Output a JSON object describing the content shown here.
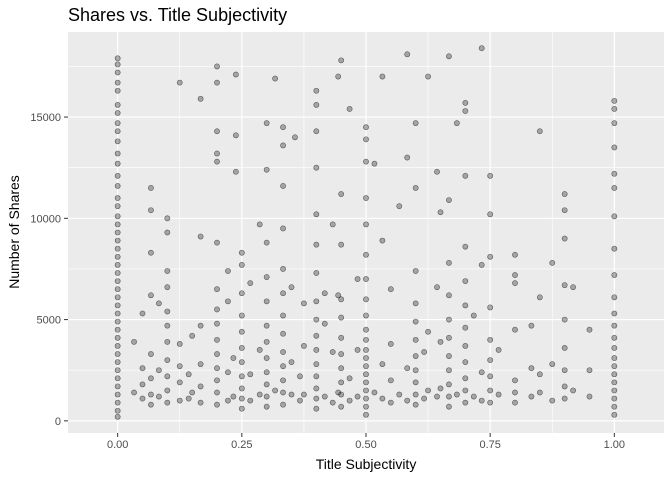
{
  "chart_data": {
    "type": "scatter",
    "title": "Shares vs. Title Subjectivity",
    "xlabel": "Title Subjectivity",
    "ylabel": "Number of Shares",
    "xlim": [
      -0.1,
      1.1
    ],
    "ylim": [
      -600,
      19200
    ],
    "x_ticks": [
      0.0,
      0.25,
      0.5,
      0.75,
      1.0
    ],
    "x_tick_labels": [
      "0.00",
      "0.25",
      "0.50",
      "0.75",
      "1.00"
    ],
    "y_ticks": [
      0,
      5000,
      10000,
      15000
    ],
    "y_tick_labels": [
      "0",
      "5000",
      "10000",
      "15000"
    ],
    "grid": true,
    "legend": "none",
    "point_color": "#000000",
    "point_alpha": 0.3,
    "panel_background": "#ebebeb",
    "grid_color": "#ffffff",
    "points": [
      [
        0.0,
        17900
      ],
      [
        0.0,
        17600
      ],
      [
        0.0,
        17200
      ],
      [
        0.0,
        16700
      ],
      [
        0.0,
        16300
      ],
      [
        0.0,
        15600
      ],
      [
        0.0,
        15200
      ],
      [
        0.0,
        14700
      ],
      [
        0.0,
        14300
      ],
      [
        0.0,
        13800
      ],
      [
        0.0,
        13200
      ],
      [
        0.0,
        12700
      ],
      [
        0.0,
        12100
      ],
      [
        0.0,
        11600
      ],
      [
        0.0,
        11000
      ],
      [
        0.0,
        10600
      ],
      [
        0.0,
        10100
      ],
      [
        0.0,
        9700
      ],
      [
        0.0,
        9300
      ],
      [
        0.0,
        8900
      ],
      [
        0.0,
        8500
      ],
      [
        0.0,
        8100
      ],
      [
        0.0,
        7700
      ],
      [
        0.0,
        7300
      ],
      [
        0.0,
        6900
      ],
      [
        0.0,
        6500
      ],
      [
        0.0,
        6100
      ],
      [
        0.0,
        5700
      ],
      [
        0.0,
        5300
      ],
      [
        0.0,
        4900
      ],
      [
        0.0,
        4500
      ],
      [
        0.0,
        4100
      ],
      [
        0.0,
        3700
      ],
      [
        0.0,
        3300
      ],
      [
        0.0,
        2900
      ],
      [
        0.0,
        2500
      ],
      [
        0.0,
        2100
      ],
      [
        0.0,
        1700
      ],
      [
        0.0,
        1300
      ],
      [
        0.0,
        900
      ],
      [
        0.0,
        500
      ],
      [
        0.0,
        200
      ],
      [
        0.033,
        1400
      ],
      [
        0.033,
        3900
      ],
      [
        0.05,
        1100
      ],
      [
        0.05,
        1800
      ],
      [
        0.05,
        2600
      ],
      [
        0.05,
        5300
      ],
      [
        0.067,
        800
      ],
      [
        0.067,
        1300
      ],
      [
        0.067,
        2100
      ],
      [
        0.067,
        3300
      ],
      [
        0.067,
        6200
      ],
      [
        0.067,
        8300
      ],
      [
        0.067,
        10400
      ],
      [
        0.067,
        11500
      ],
      [
        0.083,
        1200
      ],
      [
        0.083,
        2500
      ],
      [
        0.083,
        5800
      ],
      [
        0.1,
        900
      ],
      [
        0.1,
        1500
      ],
      [
        0.1,
        2200
      ],
      [
        0.1,
        3000
      ],
      [
        0.1,
        3900
      ],
      [
        0.1,
        4700
      ],
      [
        0.1,
        5400
      ],
      [
        0.1,
        6600
      ],
      [
        0.1,
        7400
      ],
      [
        0.1,
        9300
      ],
      [
        0.1,
        10000
      ],
      [
        0.125,
        1000
      ],
      [
        0.125,
        1900
      ],
      [
        0.125,
        2700
      ],
      [
        0.125,
        3800
      ],
      [
        0.125,
        16700
      ],
      [
        0.143,
        1100
      ],
      [
        0.143,
        2300
      ],
      [
        0.15,
        1400
      ],
      [
        0.15,
        4200
      ],
      [
        0.167,
        900
      ],
      [
        0.167,
        1700
      ],
      [
        0.167,
        2800
      ],
      [
        0.167,
        4700
      ],
      [
        0.167,
        9100
      ],
      [
        0.167,
        15900
      ],
      [
        0.2,
        800
      ],
      [
        0.2,
        1400
      ],
      [
        0.2,
        2000
      ],
      [
        0.2,
        2600
      ],
      [
        0.2,
        3300
      ],
      [
        0.2,
        4000
      ],
      [
        0.2,
        4800
      ],
      [
        0.2,
        5500
      ],
      [
        0.2,
        6500
      ],
      [
        0.2,
        8800
      ],
      [
        0.2,
        12800
      ],
      [
        0.2,
        13200
      ],
      [
        0.2,
        14300
      ],
      [
        0.2,
        16700
      ],
      [
        0.2,
        17500
      ],
      [
        0.222,
        1000
      ],
      [
        0.222,
        2400
      ],
      [
        0.222,
        5900
      ],
      [
        0.222,
        7400
      ],
      [
        0.233,
        1200
      ],
      [
        0.233,
        3100
      ],
      [
        0.238,
        12300
      ],
      [
        0.238,
        14100
      ],
      [
        0.238,
        17100
      ],
      [
        0.25,
        600
      ],
      [
        0.25,
        1100
      ],
      [
        0.25,
        1600
      ],
      [
        0.25,
        2200
      ],
      [
        0.25,
        2900
      ],
      [
        0.25,
        3600
      ],
      [
        0.25,
        4400
      ],
      [
        0.25,
        5200
      ],
      [
        0.25,
        6300
      ],
      [
        0.25,
        7700
      ],
      [
        0.25,
        8300
      ],
      [
        0.267,
        1000
      ],
      [
        0.267,
        2300
      ],
      [
        0.267,
        6800
      ],
      [
        0.286,
        1300
      ],
      [
        0.286,
        3500
      ],
      [
        0.286,
        9700
      ],
      [
        0.3,
        700
      ],
      [
        0.3,
        1200
      ],
      [
        0.3,
        1800
      ],
      [
        0.3,
        2400
      ],
      [
        0.3,
        3100
      ],
      [
        0.3,
        3900
      ],
      [
        0.3,
        4700
      ],
      [
        0.3,
        5900
      ],
      [
        0.3,
        7100
      ],
      [
        0.3,
        8800
      ],
      [
        0.3,
        12400
      ],
      [
        0.3,
        14700
      ],
      [
        0.317,
        1500
      ],
      [
        0.317,
        16900
      ],
      [
        0.333,
        800
      ],
      [
        0.333,
        1400
      ],
      [
        0.333,
        2000
      ],
      [
        0.333,
        2700
      ],
      [
        0.333,
        3400
      ],
      [
        0.333,
        4300
      ],
      [
        0.333,
        5200
      ],
      [
        0.333,
        6300
      ],
      [
        0.333,
        7500
      ],
      [
        0.333,
        9500
      ],
      [
        0.333,
        11600
      ],
      [
        0.333,
        13600
      ],
      [
        0.333,
        14500
      ],
      [
        0.35,
        1300
      ],
      [
        0.35,
        2900
      ],
      [
        0.35,
        6600
      ],
      [
        0.357,
        14000
      ],
      [
        0.367,
        1000
      ],
      [
        0.367,
        2200
      ],
      [
        0.375,
        1300
      ],
      [
        0.375,
        3700
      ],
      [
        0.375,
        5800
      ],
      [
        0.4,
        600
      ],
      [
        0.4,
        1100
      ],
      [
        0.4,
        1600
      ],
      [
        0.4,
        2200
      ],
      [
        0.4,
        2800
      ],
      [
        0.4,
        3500
      ],
      [
        0.4,
        4200
      ],
      [
        0.4,
        5000
      ],
      [
        0.4,
        5900
      ],
      [
        0.4,
        7300
      ],
      [
        0.4,
        8700
      ],
      [
        0.4,
        10200
      ],
      [
        0.4,
        12500
      ],
      [
        0.4,
        14300
      ],
      [
        0.4,
        15600
      ],
      [
        0.4,
        16300
      ],
      [
        0.417,
        1200
      ],
      [
        0.417,
        4800
      ],
      [
        0.417,
        6300
      ],
      [
        0.433,
        900
      ],
      [
        0.433,
        3400
      ],
      [
        0.433,
        9700
      ],
      [
        0.444,
        1400
      ],
      [
        0.444,
        6200
      ],
      [
        0.444,
        17000
      ],
      [
        0.45,
        700
      ],
      [
        0.45,
        1300
      ],
      [
        0.45,
        1900
      ],
      [
        0.45,
        2600
      ],
      [
        0.45,
        3300
      ],
      [
        0.45,
        4100
      ],
      [
        0.45,
        5100
      ],
      [
        0.45,
        6000
      ],
      [
        0.45,
        8700
      ],
      [
        0.45,
        11200
      ],
      [
        0.45,
        17800
      ],
      [
        0.467,
        1000
      ],
      [
        0.467,
        2100
      ],
      [
        0.467,
        15400
      ],
      [
        0.483,
        1200
      ],
      [
        0.483,
        3500
      ],
      [
        0.483,
        7000
      ],
      [
        0.5,
        300
      ],
      [
        0.5,
        700
      ],
      [
        0.5,
        1100
      ],
      [
        0.5,
        1500
      ],
      [
        0.5,
        1900
      ],
      [
        0.5,
        2300
      ],
      [
        0.5,
        2700
      ],
      [
        0.5,
        3100
      ],
      [
        0.5,
        3500
      ],
      [
        0.5,
        4000
      ],
      [
        0.5,
        4500
      ],
      [
        0.5,
        5200
      ],
      [
        0.5,
        6000
      ],
      [
        0.5,
        7000
      ],
      [
        0.5,
        8200
      ],
      [
        0.5,
        9700
      ],
      [
        0.5,
        11000
      ],
      [
        0.5,
        12800
      ],
      [
        0.5,
        13900
      ],
      [
        0.5,
        14500
      ],
      [
        0.517,
        1400
      ],
      [
        0.517,
        12700
      ],
      [
        0.533,
        1100
      ],
      [
        0.533,
        2800
      ],
      [
        0.533,
        8900
      ],
      [
        0.533,
        17000
      ],
      [
        0.55,
        900
      ],
      [
        0.55,
        2000
      ],
      [
        0.55,
        3800
      ],
      [
        0.55,
        6500
      ],
      [
        0.567,
        1300
      ],
      [
        0.567,
        10600
      ],
      [
        0.583,
        1000
      ],
      [
        0.583,
        2600
      ],
      [
        0.583,
        13000
      ],
      [
        0.583,
        18100
      ],
      [
        0.6,
        800
      ],
      [
        0.6,
        1300
      ],
      [
        0.6,
        1900
      ],
      [
        0.6,
        2500
      ],
      [
        0.6,
        3200
      ],
      [
        0.6,
        4000
      ],
      [
        0.6,
        4900
      ],
      [
        0.6,
        5800
      ],
      [
        0.6,
        7400
      ],
      [
        0.6,
        11500
      ],
      [
        0.6,
        14700
      ],
      [
        0.617,
        1100
      ],
      [
        0.617,
        3400
      ],
      [
        0.625,
        1500
      ],
      [
        0.625,
        4400
      ],
      [
        0.625,
        17000
      ],
      [
        0.643,
        1200
      ],
      [
        0.643,
        6600
      ],
      [
        0.643,
        12300
      ],
      [
        0.65,
        1600
      ],
      [
        0.65,
        3900
      ],
      [
        0.65,
        10300
      ],
      [
        0.667,
        700
      ],
      [
        0.667,
        1200
      ],
      [
        0.667,
        1800
      ],
      [
        0.667,
        2500
      ],
      [
        0.667,
        3200
      ],
      [
        0.667,
        4100
      ],
      [
        0.667,
        5000
      ],
      [
        0.667,
        6200
      ],
      [
        0.667,
        7800
      ],
      [
        0.667,
        10900
      ],
      [
        0.667,
        18000
      ],
      [
        0.683,
        1300
      ],
      [
        0.683,
        14700
      ],
      [
        0.7,
        900
      ],
      [
        0.7,
        1500
      ],
      [
        0.7,
        2100
      ],
      [
        0.7,
        2900
      ],
      [
        0.7,
        3700
      ],
      [
        0.7,
        4600
      ],
      [
        0.7,
        5700
      ],
      [
        0.7,
        6900
      ],
      [
        0.7,
        8600
      ],
      [
        0.7,
        12100
      ],
      [
        0.7,
        15300
      ],
      [
        0.7,
        15700
      ],
      [
        0.717,
        1200
      ],
      [
        0.717,
        5200
      ],
      [
        0.733,
        1000
      ],
      [
        0.733,
        2400
      ],
      [
        0.733,
        7700
      ],
      [
        0.733,
        18400
      ],
      [
        0.75,
        900
      ],
      [
        0.75,
        1500
      ],
      [
        0.75,
        2200
      ],
      [
        0.75,
        3000
      ],
      [
        0.75,
        4000
      ],
      [
        0.75,
        5600
      ],
      [
        0.75,
        8100
      ],
      [
        0.75,
        10200
      ],
      [
        0.75,
        12100
      ],
      [
        0.767,
        1300
      ],
      [
        0.767,
        3500
      ],
      [
        0.8,
        900
      ],
      [
        0.8,
        1400
      ],
      [
        0.8,
        2000
      ],
      [
        0.8,
        4500
      ],
      [
        0.8,
        6800
      ],
      [
        0.8,
        7200
      ],
      [
        0.8,
        8200
      ],
      [
        0.833,
        1200
      ],
      [
        0.833,
        2600
      ],
      [
        0.833,
        4700
      ],
      [
        0.85,
        1400
      ],
      [
        0.85,
        2300
      ],
      [
        0.85,
        6100
      ],
      [
        0.85,
        14300
      ],
      [
        0.875,
        1000
      ],
      [
        0.875,
        2800
      ],
      [
        0.875,
        7800
      ],
      [
        0.9,
        1100
      ],
      [
        0.9,
        1700
      ],
      [
        0.9,
        2500
      ],
      [
        0.9,
        3600
      ],
      [
        0.9,
        5000
      ],
      [
        0.9,
        6700
      ],
      [
        0.9,
        9000
      ],
      [
        0.9,
        10400
      ],
      [
        0.9,
        11200
      ],
      [
        0.917,
        1500
      ],
      [
        0.917,
        6600
      ],
      [
        0.95,
        1200
      ],
      [
        0.95,
        2500
      ],
      [
        0.95,
        4500
      ],
      [
        1.0,
        300
      ],
      [
        1.0,
        700
      ],
      [
        1.0,
        1100
      ],
      [
        1.0,
        1500
      ],
      [
        1.0,
        1900
      ],
      [
        1.0,
        2300
      ],
      [
        1.0,
        2700
      ],
      [
        1.0,
        3100
      ],
      [
        1.0,
        3600
      ],
      [
        1.0,
        4100
      ],
      [
        1.0,
        4700
      ],
      [
        1.0,
        5300
      ],
      [
        1.0,
        6100
      ],
      [
        1.0,
        7200
      ],
      [
        1.0,
        8500
      ],
      [
        1.0,
        10100
      ],
      [
        1.0,
        11500
      ],
      [
        1.0,
        12200
      ],
      [
        1.0,
        13500
      ],
      [
        1.0,
        14700
      ],
      [
        1.0,
        15400
      ],
      [
        1.0,
        15800
      ]
    ]
  }
}
